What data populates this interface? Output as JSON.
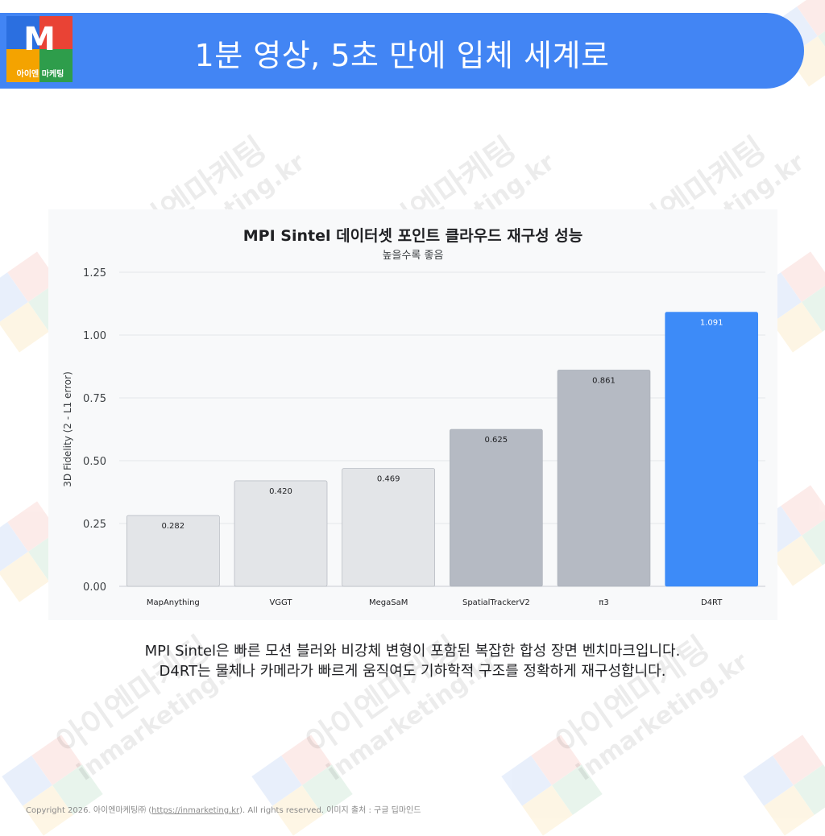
{
  "header": {
    "title": "1분 영상, 5초 만에 입체 세계로",
    "logo_letter": "M",
    "logo_brand": "아이엔 마케팅",
    "color": "#4285f4"
  },
  "watermark": {
    "text_ko": "아이엔마케팅",
    "text_en": "inmarketing.kr"
  },
  "chart_data": {
    "type": "bar",
    "title": "MPI Sintel 데이터셋 포인트 클라우드 재구성 성능",
    "subtitle": "높을수록 좋음",
    "xlabel": "",
    "ylabel": "3D Fidelity (2 - L1 error)",
    "ylim": [
      0,
      1.25
    ],
    "yticks": [
      "0.00",
      "0.25",
      "0.50",
      "0.75",
      "1.00",
      "1.25"
    ],
    "categories": [
      "MapAnything",
      "VGGT",
      "MegaSaM",
      "SpatialTrackerV2",
      "π3",
      "D4RT"
    ],
    "values": [
      0.282,
      0.42,
      0.469,
      0.625,
      0.861,
      1.091
    ],
    "value_labels": [
      "0.282",
      "0.420",
      "0.469",
      "0.625",
      "0.861",
      "1.091"
    ],
    "bar_colors": [
      "#e3e5e8",
      "#e3e5e8",
      "#e3e5e8",
      "#b5bac3",
      "#b5bac3",
      "#3d8bf8"
    ],
    "grid": true,
    "legend": "none"
  },
  "caption": {
    "line1": "MPI Sintel은 빠른 모션 블러와 비강체 변형이 포함된 복잡한 합성 장면 벤치마크입니다.",
    "line2": "D4RT는 물체나 카메라가 빠르게 움직여도 기하학적 구조를 정확하게 재구성합니다."
  },
  "footer": {
    "prefix": "Copyright 2026. 아이엔마케팅㈜ (",
    "link": "https://inmarketing.kr",
    "suffix": "). All rights reserved. 이미지 출처 : 구글 딥마인드"
  }
}
